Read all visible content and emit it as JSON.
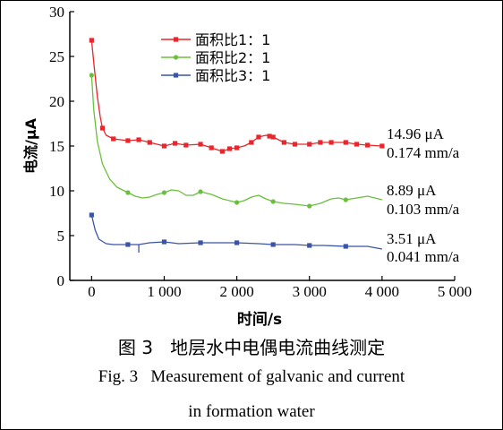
{
  "caption": {
    "cn": "图 3   地层水中电偶电流曲线测定",
    "en_line1": "Fig. 3   Measurement of galvanic and current",
    "en_line2": "in formation water"
  },
  "chart_data": {
    "type": "line",
    "xlabel": "时间/s",
    "ylabel": "电流/μA",
    "xlim": [
      -300,
      5000
    ],
    "ylim": [
      0,
      30
    ],
    "x_ticks": [
      0,
      1000,
      2000,
      3000,
      4000,
      5000
    ],
    "x_tick_labels": [
      "0",
      "1 000",
      "2 000",
      "3 000",
      "4 000",
      "5 000"
    ],
    "y_ticks": [
      0,
      5,
      10,
      15,
      20,
      25,
      30
    ],
    "y_tick_labels": [
      "0",
      "5",
      "10",
      "15",
      "20",
      "25",
      "30"
    ],
    "grid": false,
    "legend_position": "top-center",
    "series": [
      {
        "name": "面积比1：1",
        "color": "#e8262b",
        "marker_x": [
          0,
          150,
          300,
          500,
          650,
          800,
          1000,
          1150,
          1300,
          1500,
          1650,
          1800,
          1900,
          2000,
          2200,
          2300,
          2450,
          2500,
          2650,
          2800,
          3000,
          3150,
          3300,
          3500,
          3650,
          3800,
          4000
        ],
        "marker_y": [
          26.8,
          17.0,
          15.8,
          15.6,
          15.7,
          15.4,
          15.0,
          15.3,
          15.1,
          15.2,
          14.8,
          14.4,
          14.7,
          14.8,
          15.4,
          16.0,
          16.1,
          16.0,
          15.4,
          15.2,
          15.2,
          15.4,
          15.4,
          15.4,
          15.2,
          15.1,
          15.0
        ],
        "line_x": [
          0,
          40,
          80,
          120,
          150,
          200,
          300,
          400,
          500,
          650,
          800,
          1000,
          1150,
          1300,
          1500,
          1650,
          1800,
          1900,
          2000,
          2100,
          2200,
          2300,
          2400,
          2500,
          2650,
          2800,
          3000,
          3150,
          3300,
          3500,
          3650,
          3800,
          4000
        ],
        "line_y": [
          26.8,
          23.5,
          20.5,
          18.2,
          17.0,
          16.2,
          15.8,
          15.7,
          15.6,
          15.7,
          15.4,
          15.0,
          15.3,
          15.1,
          15.2,
          14.8,
          14.4,
          14.7,
          14.8,
          15.0,
          15.4,
          16.0,
          16.2,
          16.0,
          15.4,
          15.2,
          15.2,
          15.4,
          15.4,
          15.4,
          15.2,
          15.1,
          15.0
        ],
        "label_current": "14.96 μA",
        "label_rate": "0.174 mm/a"
      },
      {
        "name": "面积比2：1",
        "color": "#6abf3c",
        "marker_x": [
          0,
          500,
          1000,
          1500,
          2000,
          2500,
          3000,
          3500
        ],
        "marker_y": [
          22.9,
          9.8,
          9.8,
          9.9,
          8.7,
          8.8,
          8.3,
          9.0
        ],
        "line_x": [
          0,
          30,
          80,
          150,
          250,
          350,
          500,
          600,
          700,
          800,
          900,
          1000,
          1100,
          1200,
          1300,
          1400,
          1500,
          1650,
          1800,
          1900,
          2000,
          2100,
          2200,
          2300,
          2400,
          2500,
          2650,
          2800,
          3000,
          3150,
          3300,
          3400,
          3500,
          3650,
          3800,
          4000
        ],
        "line_y": [
          22.9,
          19.0,
          15.5,
          13.0,
          11.3,
          10.4,
          9.8,
          9.4,
          9.2,
          9.3,
          9.6,
          9.8,
          10.1,
          10.0,
          9.5,
          9.5,
          9.9,
          9.6,
          9.1,
          8.9,
          8.7,
          8.9,
          9.3,
          9.5,
          9.1,
          8.8,
          8.6,
          8.5,
          8.3,
          8.6,
          9.1,
          9.2,
          9.0,
          9.2,
          9.4,
          9.0
        ],
        "label_current": "8.89 μA",
        "label_rate": "0.103 mm/a"
      },
      {
        "name": "面积比3：1",
        "color": "#3a55a6",
        "marker_x": [
          0,
          500,
          1000,
          1500,
          2000,
          2500,
          3000,
          3500
        ],
        "marker_y": [
          7.3,
          4.0,
          4.3,
          4.2,
          4.2,
          4.0,
          3.9,
          3.8
        ],
        "line_x": [
          0,
          50,
          100,
          200,
          300,
          500,
          650,
          800,
          1000,
          1200,
          1500,
          1800,
          2000,
          2300,
          2500,
          2800,
          3000,
          3200,
          3500,
          3800,
          4000
        ],
        "line_y": [
          7.3,
          5.6,
          4.6,
          4.1,
          4.0,
          4.0,
          4.0,
          4.2,
          4.3,
          4.1,
          4.2,
          4.2,
          4.2,
          4.1,
          4.0,
          4.0,
          3.9,
          3.9,
          3.8,
          3.8,
          3.5
        ],
        "label_current": "3.51 μA",
        "label_rate": "0.041 mm/a"
      }
    ]
  }
}
